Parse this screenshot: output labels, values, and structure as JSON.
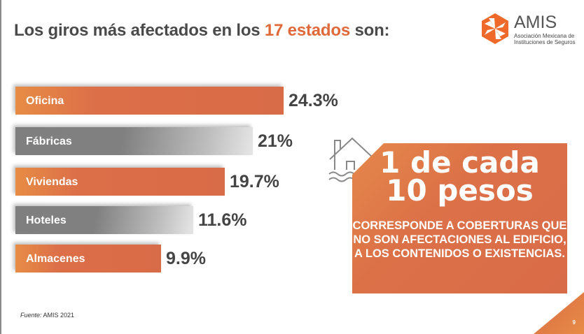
{
  "title": {
    "prefix": "Los giros más afectados en los ",
    "highlight": "17 estados",
    "suffix": " son:"
  },
  "logo": {
    "name": "AMIS",
    "subtitle_line1": "Asociación Mexicana de",
    "subtitle_line2": "Instituciones de Seguros"
  },
  "chart_data": {
    "type": "bar",
    "orientation": "horizontal",
    "categories": [
      "Oficina",
      "Fábricas",
      "Viviendas",
      "Hoteles",
      "Almacenes"
    ],
    "values": [
      24.3,
      21,
      19.7,
      11.6,
      9.9
    ],
    "value_labels": [
      "24.3%",
      "21%",
      "19.7%",
      "11.6%",
      "9.9%"
    ],
    "bar_colors": [
      "#dc6f48",
      "#808080",
      "#dc6f48",
      "#808080",
      "#dc6f48"
    ],
    "grid": false
  },
  "callout": {
    "headline_line1": "1 de cada",
    "headline_line2": "10 pesos",
    "body": "CORRESPONDE A COBERTURAS QUE NO SON AFECTACIONES AL EDIFICIO, A LOS CONTENIDOS O EXISTENCIAS.",
    "icon": "flooded-house-icon"
  },
  "footer": {
    "source_label": "Fuente:",
    "source_text": " AMIS 2021",
    "page_number": "9"
  },
  "colors": {
    "accent": "#dc6f48",
    "text": "#444444",
    "gray": "#808080"
  }
}
